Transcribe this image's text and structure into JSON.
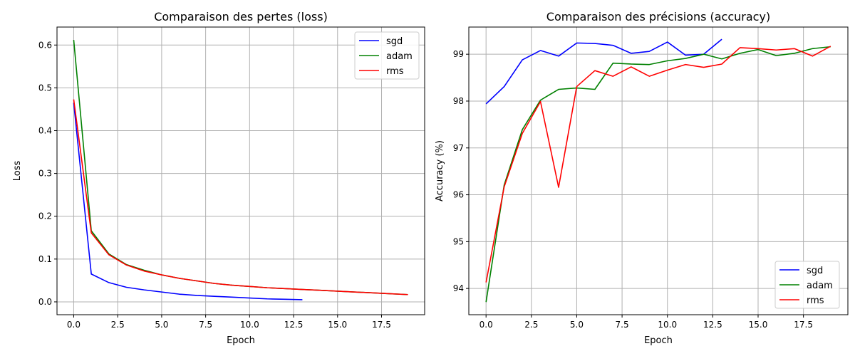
{
  "chart_data": [
    {
      "type": "line",
      "title": "Comparaison des pertes (loss)",
      "xlabel": "Epoch",
      "ylabel": "Loss",
      "xlim": [
        -0.95,
        19.95
      ],
      "ylim": [
        -0.03,
        0.642
      ],
      "xticks": [
        0.0,
        2.5,
        5.0,
        7.5,
        10.0,
        12.5,
        15.0,
        17.5
      ],
      "xtick_labels": [
        "0.0",
        "2.5",
        "5.0",
        "7.5",
        "10.0",
        "12.5",
        "15.0",
        "17.5"
      ],
      "yticks": [
        0.0,
        0.1,
        0.2,
        0.3,
        0.4,
        0.5,
        0.6
      ],
      "ytick_labels": [
        "0.0",
        "0.1",
        "0.2",
        "0.3",
        "0.4",
        "0.5",
        "0.6"
      ],
      "grid": true,
      "legend_position": "top-right",
      "series": [
        {
          "name": "sgd",
          "color": "#0000ff",
          "x": [
            0,
            1,
            2,
            3,
            4,
            5,
            6,
            7,
            8,
            9,
            10,
            11,
            12,
            13
          ],
          "values": [
            0.465,
            0.065,
            0.045,
            0.034,
            0.028,
            0.023,
            0.018,
            0.015,
            0.013,
            0.011,
            0.009,
            0.007,
            0.006,
            0.005
          ]
        },
        {
          "name": "adam",
          "color": "#008000",
          "x": [
            0,
            1,
            2,
            3,
            4,
            5,
            6,
            7,
            8,
            9,
            10,
            11,
            12,
            13,
            14,
            15,
            16,
            17,
            18,
            19
          ],
          "values": [
            0.612,
            0.166,
            0.112,
            0.087,
            0.074,
            0.063,
            0.055,
            0.049,
            0.043,
            0.039,
            0.036,
            0.033,
            0.031,
            0.029,
            0.027,
            0.025,
            0.023,
            0.021,
            0.019,
            0.017
          ]
        },
        {
          "name": "rms",
          "color": "#ff0000",
          "x": [
            0,
            1,
            2,
            3,
            4,
            5,
            6,
            7,
            8,
            9,
            10,
            11,
            12,
            13,
            14,
            15,
            16,
            17,
            18,
            19
          ],
          "values": [
            0.473,
            0.161,
            0.11,
            0.086,
            0.072,
            0.063,
            0.055,
            0.049,
            0.043,
            0.039,
            0.036,
            0.033,
            0.031,
            0.029,
            0.027,
            0.025,
            0.023,
            0.021,
            0.019,
            0.017
          ]
        }
      ]
    },
    {
      "type": "line",
      "title": "Comparaison des précisions (accuracy)",
      "xlabel": "Epoch",
      "ylabel": "Accuracy (%)",
      "xlim": [
        -0.95,
        19.95
      ],
      "ylim": [
        93.44,
        99.58
      ],
      "xticks": [
        0.0,
        2.5,
        5.0,
        7.5,
        10.0,
        12.5,
        15.0,
        17.5
      ],
      "xtick_labels": [
        "0.0",
        "2.5",
        "5.0",
        "7.5",
        "10.0",
        "12.5",
        "15.0",
        "17.5"
      ],
      "yticks": [
        94,
        95,
        96,
        97,
        98,
        99
      ],
      "ytick_labels": [
        "94",
        "95",
        "96",
        "97",
        "98",
        "99"
      ],
      "grid": true,
      "legend_position": "bottom-right",
      "series": [
        {
          "name": "sgd",
          "color": "#0000ff",
          "x": [
            0,
            1,
            2,
            3,
            4,
            5,
            6,
            7,
            8,
            9,
            10,
            11,
            12,
            13
          ],
          "values": [
            97.94,
            98.31,
            98.88,
            99.08,
            98.96,
            99.24,
            99.23,
            99.19,
            99.02,
            99.06,
            99.26,
            98.98,
            99.0,
            99.32
          ]
        },
        {
          "name": "adam",
          "color": "#008000",
          "x": [
            0,
            1,
            2,
            3,
            4,
            5,
            6,
            7,
            8,
            9,
            10,
            11,
            12,
            13,
            14,
            15,
            16,
            17,
            18,
            19
          ],
          "values": [
            93.71,
            96.21,
            97.39,
            98.02,
            98.25,
            98.28,
            98.25,
            98.81,
            98.79,
            98.78,
            98.86,
            98.91,
            99.0,
            98.9,
            99.02,
            99.1,
            98.97,
            99.02,
            99.12,
            99.16
          ]
        },
        {
          "name": "rms",
          "color": "#ff0000",
          "x": [
            0,
            1,
            2,
            3,
            4,
            5,
            6,
            7,
            8,
            9,
            10,
            11,
            12,
            13,
            14,
            15,
            16,
            17,
            18,
            19
          ],
          "values": [
            94.13,
            96.17,
            97.31,
            97.99,
            96.16,
            98.31,
            98.65,
            98.53,
            98.73,
            98.53,
            98.66,
            98.78,
            98.72,
            98.79,
            99.14,
            99.12,
            99.09,
            99.12,
            98.96,
            99.17
          ]
        }
      ]
    }
  ]
}
